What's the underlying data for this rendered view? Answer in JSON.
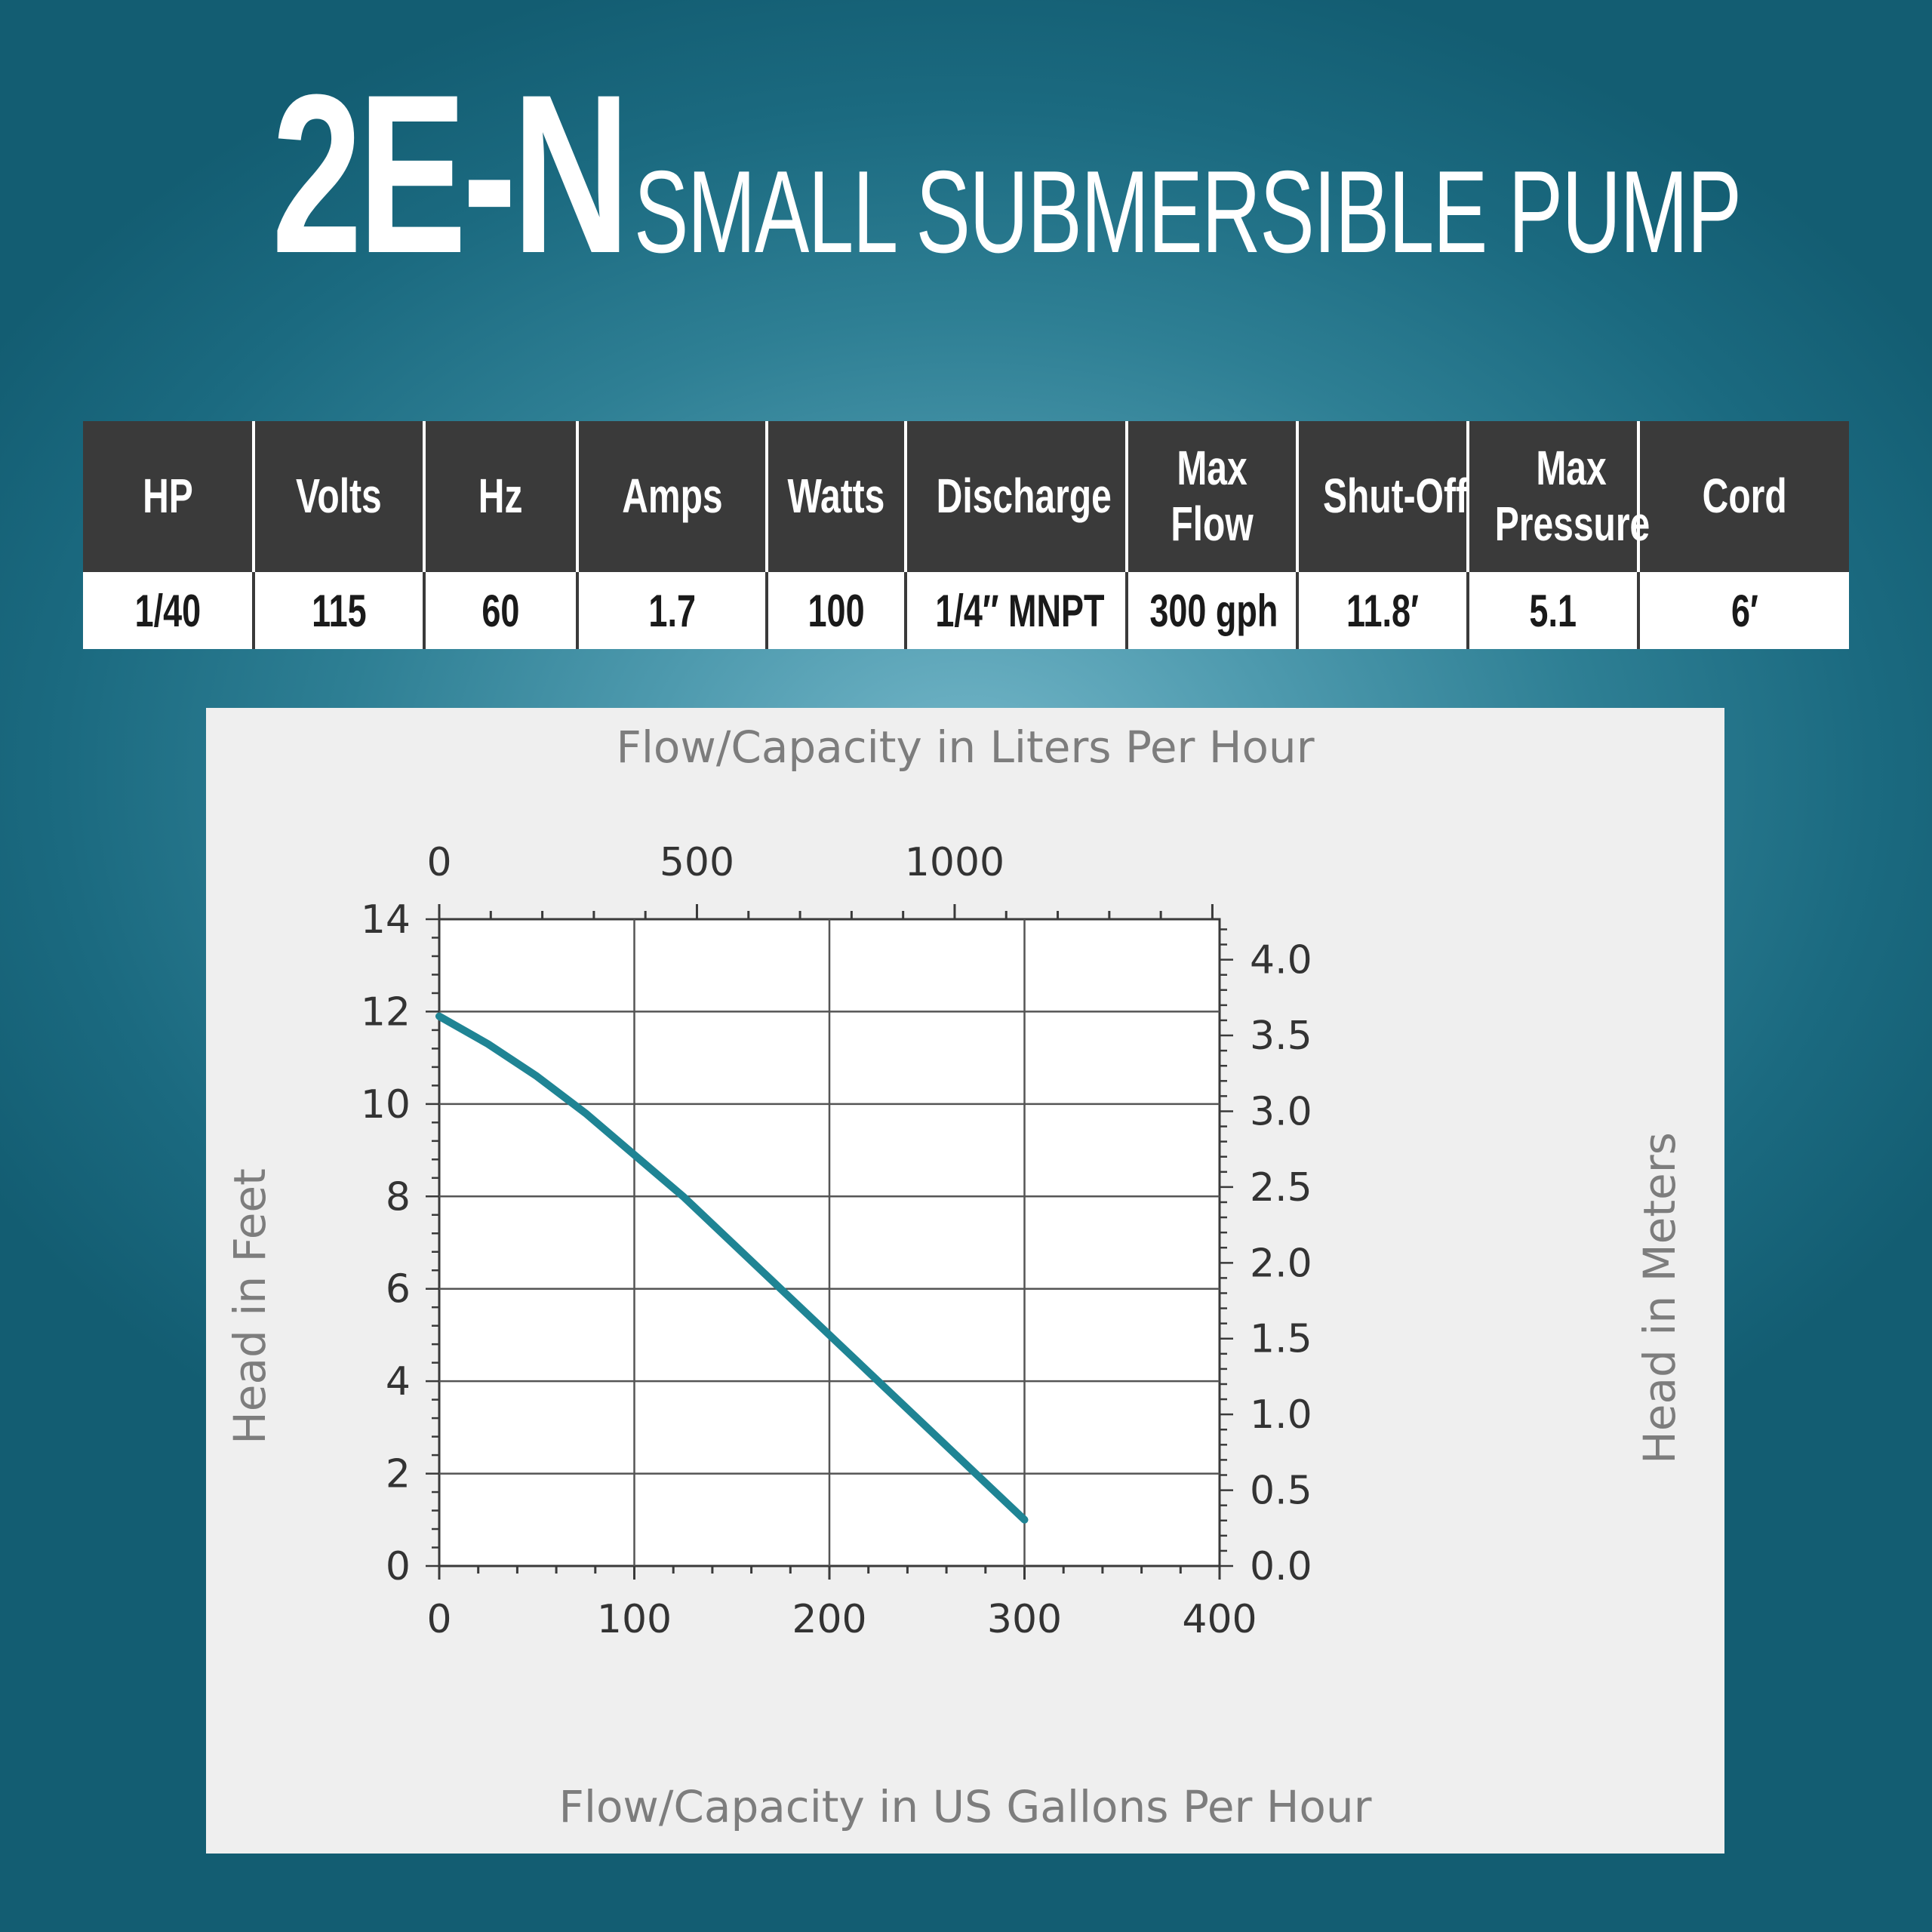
{
  "header": {
    "model": "2E-N",
    "subtitle": "SMALL SUBMERSIBLE PUMP"
  },
  "specs": {
    "headers": [
      "HP",
      "Volts",
      "Hz",
      "Amps",
      "Watts",
      "Discharge",
      "Max Flow",
      "Shut-Off",
      "Max Pressure",
      "Cord"
    ],
    "values": [
      "1/40",
      "115",
      "60",
      "1.7",
      "100",
      "1/4″ MNPT",
      "300 gph",
      "11.8′",
      "5.1",
      "6′"
    ]
  },
  "colors": {
    "curve": "#1f8494",
    "header_bg": "#3a3a3a",
    "chart_bg": "#efefef",
    "axis_label": "#7d7d7d"
  },
  "chart_data": {
    "type": "line",
    "title": "",
    "xlabel": "Flow/Capacity in US Gallons Per Hour",
    "x2label": "Flow/Capacity in Liters Per Hour",
    "ylabel": "Head in Feet",
    "y2label": "Head in Meters",
    "xlim": [
      0,
      400
    ],
    "ylim": [
      0,
      14
    ],
    "x2lim": [
      0,
      1514
    ],
    "y2lim": [
      0,
      4.267
    ],
    "x_ticks": [
      0,
      100,
      200,
      300,
      400
    ],
    "y_ticks": [
      0,
      2,
      4,
      6,
      8,
      10,
      12,
      14
    ],
    "x2_ticks": [
      0,
      500,
      1000
    ],
    "x2_tick_labels": [
      "0",
      "500",
      "1000"
    ],
    "y2_ticks": [
      0,
      0.5,
      1.0,
      1.5,
      2.0,
      2.5,
      3.0,
      3.5,
      4.0
    ],
    "y2_tick_labels": [
      "0.0",
      "0.5",
      "1.0",
      "1.5",
      "2.0",
      "2.5",
      "3.0",
      "3.5",
      "4.0"
    ],
    "grid": true,
    "series": [
      {
        "x": [
          0,
          25,
          50,
          75,
          100,
          125,
          150,
          175,
          200,
          225,
          250,
          275,
          300
        ],
        "y": [
          11.9,
          11.3,
          10.6,
          9.8,
          8.9,
          8.0,
          7.0,
          6.0,
          5.0,
          4.0,
          3.0,
          2.0,
          1.0
        ]
      }
    ]
  }
}
